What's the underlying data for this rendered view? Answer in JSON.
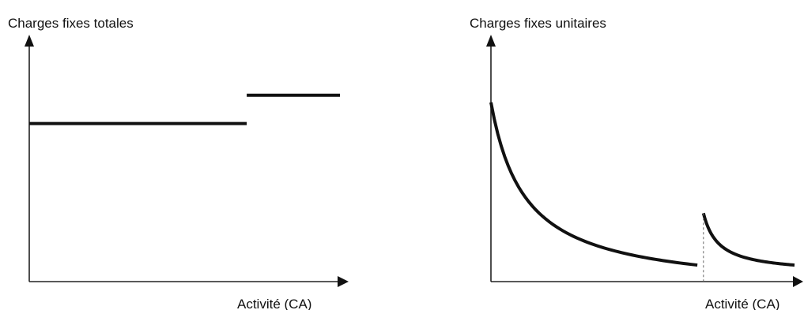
{
  "chart_data": [
    {
      "type": "line",
      "title": "",
      "ylabel": "Charges fixes totales",
      "xlabel": "Activité (CA)",
      "grid": false,
      "legend": "none",
      "xlim": [
        0,
        10
      ],
      "ylim": [
        0,
        10
      ],
      "series": [
        {
          "x": [
            0,
            7
          ],
          "y": [
            6.7,
            6.7
          ]
        },
        {
          "x": [
            7,
            10
          ],
          "y": [
            7.9,
            7.9
          ]
        }
      ]
    },
    {
      "type": "line",
      "title": "",
      "ylabel": "Charges fixes unitaires",
      "xlabel": "Activité (CA)",
      "grid": false,
      "legend": "none",
      "xlim": [
        0,
        10
      ],
      "ylim": [
        0,
        10
      ],
      "series": [
        {
          "curve": "hyperbola",
          "x": [
            0,
            6.8
          ],
          "y": [
            7.6,
            0.7
          ]
        },
        {
          "curve": "hyperbola",
          "x": [
            7.0,
            10
          ],
          "y": [
            2.9,
            0.7
          ]
        }
      ],
      "annotations": [
        {
          "type": "dashed-vertical",
          "x": 7.0
        }
      ]
    }
  ],
  "colors": {
    "line": "#111111",
    "axis": "#222222",
    "dashed": "#666666"
  }
}
